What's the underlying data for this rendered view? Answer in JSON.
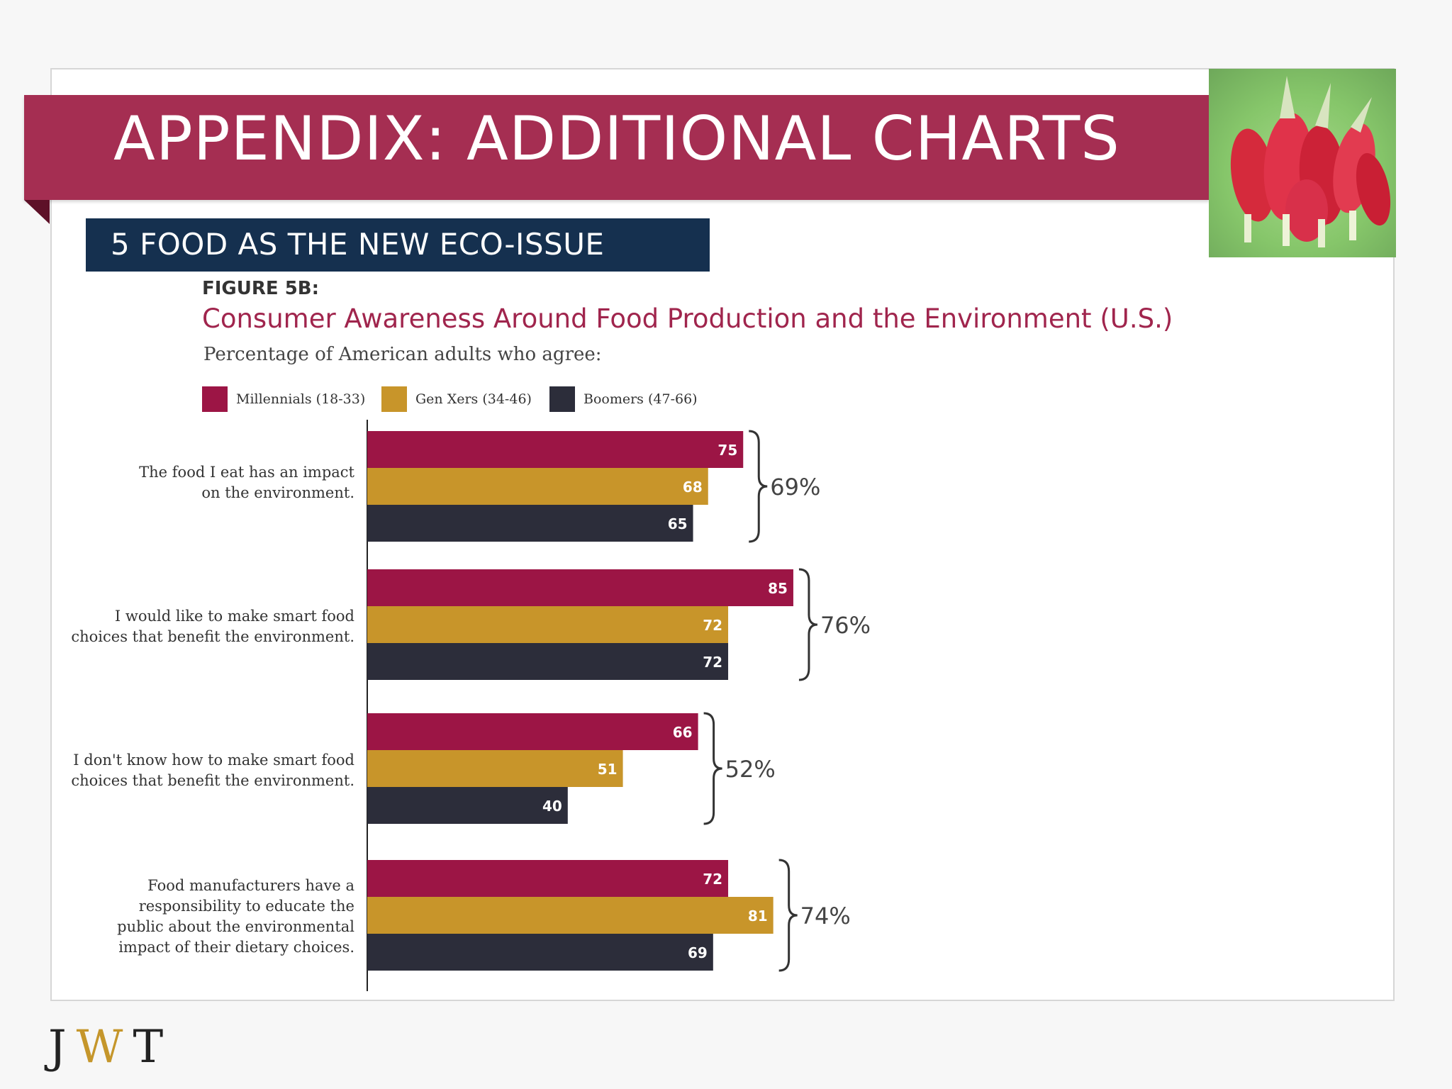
{
  "header": {
    "title": "APPENDIX: ADDITIONAL CHARTS",
    "section": "5  FOOD AS THE NEW ECO-ISSUE"
  },
  "figure": {
    "label": "FIGURE 5B:",
    "subtitle": "Percentage of American adults who agree:"
  },
  "colors": {
    "banner": "#a52e52",
    "section_bar": "#15304f",
    "millennials": "#9c1545",
    "genx": "#c8952a",
    "boomers": "#2c2d3a"
  },
  "photo_icon": "radish-photo",
  "logo": {
    "text": "JWT",
    "j": "J",
    "w": "W",
    "t": "T"
  },
  "chart_data": {
    "type": "bar",
    "orientation": "horizontal",
    "title": "Consumer Awareness Around Food Production and the Environment (U.S.)",
    "categories": [
      "The food I eat has an impact\non the environment.",
      "I would like to make smart food\nchoices that benefit the environment.",
      "I don't know how to make smart food\nchoices that benefit the environment.",
      "Food manufacturers have a\nresponsibility to educate the\npublic about the environmental\nimpact of their dietary choices."
    ],
    "series": [
      {
        "name": "Millennials (18-33)",
        "values": [
          75,
          85,
          66,
          72
        ]
      },
      {
        "name": "Gen Xers (34-46)",
        "values": [
          68,
          72,
          51,
          81
        ]
      },
      {
        "name": "Boomers (47-66)",
        "values": [
          65,
          72,
          40,
          69
        ]
      }
    ],
    "group_totals": [
      "69%",
      "76%",
      "52%",
      "74%"
    ],
    "xlim": [
      0,
      100
    ],
    "legend_position": "top",
    "grid": false,
    "axis_labels_shown": false
  }
}
